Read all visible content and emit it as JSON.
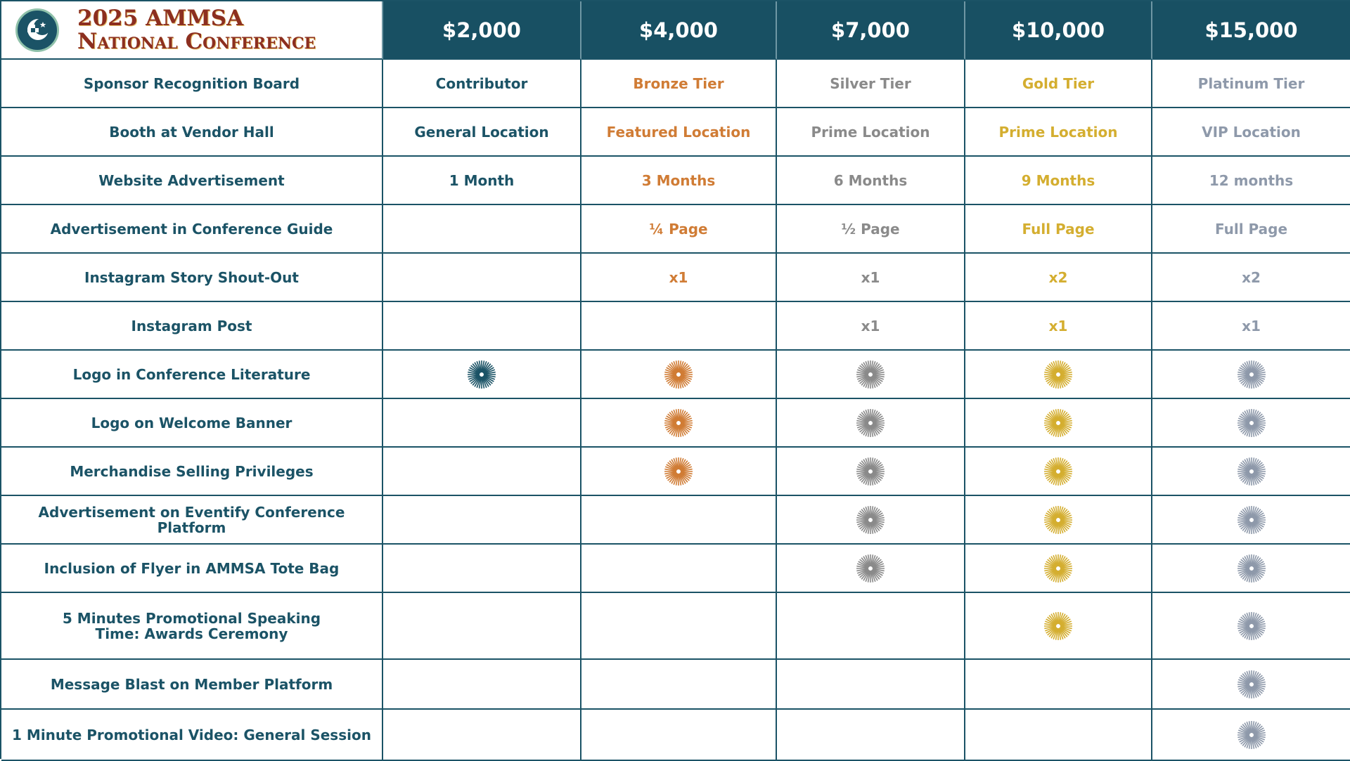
{
  "conference": {
    "title_line1": "2025 AMMSA",
    "title_line2": "National Conference"
  },
  "tiers": [
    {
      "price": "$2,000",
      "color": "#1b5366"
    },
    {
      "price": "$4,000",
      "color": "#d07c35"
    },
    {
      "price": "$7,000",
      "color": "#8a8a8a"
    },
    {
      "price": "$10,000",
      "color": "#d4ae30"
    },
    {
      "price": "$15,000",
      "color": "#8e99aa"
    }
  ],
  "rows": [
    {
      "benefit": "Sponsor Recognition Board",
      "cells": [
        "Contributor",
        "Bronze Tier",
        "Silver Tier",
        "Gold Tier",
        "Platinum Tier"
      ]
    },
    {
      "benefit": "Booth at Vendor Hall",
      "cells": [
        "General Location",
        "Featured Location",
        "Prime Location",
        "Prime Location",
        "VIP Location"
      ]
    },
    {
      "benefit": "Website Advertisement",
      "cells": [
        "1 Month",
        "3 Months",
        "6 Months",
        "9 Months",
        "12 months"
      ]
    },
    {
      "benefit": "Advertisement in Conference Guide",
      "cells": [
        "",
        "¼ Page",
        "½ Page",
        "Full Page",
        "Full Page"
      ]
    },
    {
      "benefit": "Instagram Story Shout-Out",
      "cells": [
        "",
        "x1",
        "x1",
        "x2",
        "x2"
      ]
    },
    {
      "benefit": "Instagram Post",
      "cells": [
        "",
        "",
        "x1",
        "x1",
        "x1"
      ]
    },
    {
      "benefit": "Logo in Conference Literature",
      "cells": [
        "burst-icon",
        "burst-icon",
        "burst-icon",
        "burst-icon",
        "burst-icon"
      ]
    },
    {
      "benefit": "Logo on Welcome Banner",
      "cells": [
        "",
        "burst-icon",
        "burst-icon",
        "burst-icon",
        "burst-icon"
      ]
    },
    {
      "benefit": "Merchandise Selling Privileges",
      "cells": [
        "",
        "burst-icon",
        "burst-icon",
        "burst-icon",
        "burst-icon"
      ]
    },
    {
      "benefit": "Advertisement on Eventify Conference Platform",
      "cells": [
        "",
        "",
        "burst-icon",
        "burst-icon",
        "burst-icon"
      ]
    },
    {
      "benefit": "Inclusion of Flyer in AMMSA Tote Bag",
      "cells": [
        "",
        "",
        "burst-icon",
        "burst-icon",
        "burst-icon"
      ]
    },
    {
      "benefit": "5 Minutes Promotional Speaking Time: Awards Ceremony",
      "cells": [
        "",
        "",
        "",
        "burst-icon",
        "burst-icon"
      ]
    },
    {
      "benefit": "Message Blast on Member Platform",
      "cells": [
        "",
        "",
        "",
        "",
        "burst-icon"
      ]
    },
    {
      "benefit": "1 Minute Promotional Video: General Session",
      "cells": [
        "",
        "",
        "",
        "",
        "burst-icon"
      ]
    }
  ]
}
